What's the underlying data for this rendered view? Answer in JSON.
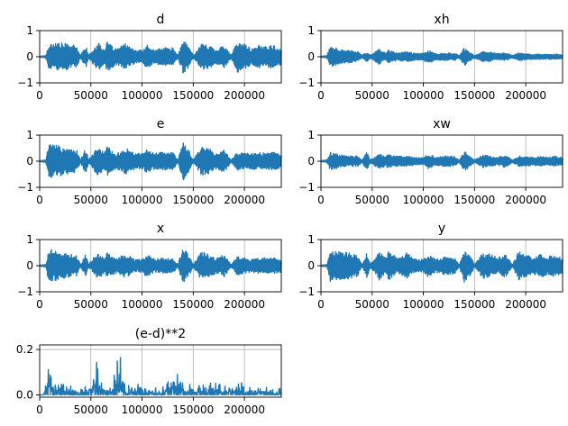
{
  "figure": {
    "background": "#ffffff",
    "line_color": "#1f77b4",
    "grid_color": "#b0b0b0"
  },
  "chart_data": [
    {
      "type": "line",
      "title": "d",
      "x_range": [
        0,
        236000
      ],
      "ylim": [
        -1,
        1
      ],
      "xticks": [
        0,
        50000,
        100000,
        150000,
        200000
      ],
      "xtick_labels": [
        "0",
        "50000",
        "100000",
        "150000",
        "200000"
      ],
      "yticks": [
        -1,
        0,
        1
      ],
      "ytick_labels": [
        "−1",
        "0",
        "1"
      ],
      "grid": "x",
      "signal": {
        "kind": "speech",
        "x": [
          0,
          6000,
          9000,
          18000,
          27000,
          36000,
          40000,
          45000,
          48000,
          57000,
          63000,
          66000,
          75000,
          84000,
          93000,
          100000,
          105000,
          112000,
          120000,
          130000,
          135000,
          140000,
          146000,
          150000,
          158000,
          165000,
          173000,
          180000,
          187000,
          193000,
          200000,
          207000,
          215000,
          222000,
          228000,
          236000
        ],
        "peak": [
          0.02,
          0.05,
          0.5,
          0.55,
          0.5,
          0.4,
          0.05,
          0.45,
          0.05,
          0.55,
          0.3,
          0.55,
          0.3,
          0.5,
          0.25,
          0.25,
          0.45,
          0.25,
          0.35,
          0.35,
          0.05,
          0.65,
          0.4,
          0.05,
          0.5,
          0.45,
          0.3,
          0.45,
          0.05,
          0.6,
          0.5,
          0.3,
          0.45,
          0.4,
          0.45,
          0.3
        ]
      }
    },
    {
      "type": "line",
      "title": "xh",
      "x_range": [
        0,
        236000
      ],
      "ylim": [
        -1,
        1
      ],
      "xticks": [
        0,
        50000,
        100000,
        150000,
        200000
      ],
      "xtick_labels": [
        "0",
        "50000",
        "100000",
        "150000",
        "200000"
      ],
      "yticks": [
        -1,
        0,
        1
      ],
      "ytick_labels": [
        "−1",
        "0",
        "1"
      ],
      "grid": "x",
      "signal": {
        "kind": "speech",
        "x": [
          0,
          6000,
          9000,
          18000,
          27000,
          36000,
          40000,
          45000,
          48000,
          57000,
          63000,
          66000,
          75000,
          84000,
          93000,
          100000,
          105000,
          112000,
          120000,
          130000,
          135000,
          140000,
          146000,
          150000,
          158000,
          165000,
          173000,
          180000,
          187000,
          193000,
          200000,
          207000,
          215000,
          222000,
          228000,
          236000
        ],
        "peak": [
          0.02,
          0.05,
          0.45,
          0.3,
          0.25,
          0.2,
          0.05,
          0.2,
          0.05,
          0.3,
          0.15,
          0.25,
          0.15,
          0.2,
          0.12,
          0.15,
          0.25,
          0.12,
          0.15,
          0.15,
          0.05,
          0.35,
          0.15,
          0.05,
          0.2,
          0.18,
          0.12,
          0.15,
          0.05,
          0.15,
          0.12,
          0.1,
          0.1,
          0.1,
          0.1,
          0.08
        ]
      }
    },
    {
      "type": "line",
      "title": "e",
      "x_range": [
        0,
        236000
      ],
      "ylim": [
        -1,
        1
      ],
      "xticks": [
        0,
        50000,
        100000,
        150000,
        200000
      ],
      "xtick_labels": [
        "0",
        "50000",
        "100000",
        "150000",
        "200000"
      ],
      "yticks": [
        -1,
        0,
        1
      ],
      "ytick_labels": [
        "−1",
        "0",
        "1"
      ],
      "grid": "x",
      "signal": {
        "kind": "speech",
        "x": [
          0,
          6000,
          9000,
          18000,
          27000,
          36000,
          40000,
          45000,
          48000,
          57000,
          63000,
          66000,
          75000,
          84000,
          93000,
          100000,
          105000,
          112000,
          120000,
          130000,
          135000,
          140000,
          146000,
          150000,
          158000,
          165000,
          173000,
          180000,
          187000,
          193000,
          200000,
          207000,
          215000,
          222000,
          228000,
          236000
        ],
        "peak": [
          0.02,
          0.05,
          0.7,
          0.6,
          0.5,
          0.45,
          0.05,
          0.5,
          0.05,
          0.6,
          0.3,
          0.55,
          0.3,
          0.5,
          0.3,
          0.3,
          0.45,
          0.3,
          0.35,
          0.35,
          0.05,
          0.75,
          0.4,
          0.05,
          0.55,
          0.5,
          0.3,
          0.45,
          0.05,
          0.35,
          0.3,
          0.3,
          0.35,
          0.3,
          0.35,
          0.25
        ]
      }
    },
    {
      "type": "line",
      "title": "xw",
      "x_range": [
        0,
        236000
      ],
      "ylim": [
        -1,
        1
      ],
      "xticks": [
        0,
        50000,
        100000,
        150000,
        200000
      ],
      "xtick_labels": [
        "0",
        "50000",
        "100000",
        "150000",
        "200000"
      ],
      "yticks": [
        -1,
        0,
        1
      ],
      "ytick_labels": [
        "−1",
        "0",
        "1"
      ],
      "grid": "x",
      "signal": {
        "kind": "speech",
        "x": [
          0,
          6000,
          9000,
          18000,
          27000,
          36000,
          40000,
          45000,
          48000,
          57000,
          63000,
          66000,
          75000,
          84000,
          93000,
          100000,
          105000,
          112000,
          120000,
          130000,
          135000,
          140000,
          146000,
          150000,
          158000,
          165000,
          173000,
          180000,
          187000,
          193000,
          200000,
          207000,
          215000,
          222000,
          228000,
          236000
        ],
        "peak": [
          0.02,
          0.05,
          0.35,
          0.25,
          0.2,
          0.2,
          0.05,
          0.35,
          0.05,
          0.3,
          0.2,
          0.25,
          0.2,
          0.2,
          0.15,
          0.15,
          0.3,
          0.15,
          0.2,
          0.2,
          0.05,
          0.4,
          0.2,
          0.05,
          0.25,
          0.2,
          0.15,
          0.25,
          0.05,
          0.2,
          0.2,
          0.15,
          0.2,
          0.15,
          0.2,
          0.15
        ]
      }
    },
    {
      "type": "line",
      "title": "x",
      "x_range": [
        0,
        236000
      ],
      "ylim": [
        -1,
        1
      ],
      "xticks": [
        0,
        50000,
        100000,
        150000,
        200000
      ],
      "xtick_labels": [
        "0",
        "50000",
        "100000",
        "150000",
        "200000"
      ],
      "yticks": [
        -1,
        0,
        1
      ],
      "ytick_labels": [
        "−1",
        "0",
        "1"
      ],
      "grid": "x",
      "signal": {
        "kind": "speech",
        "x": [
          0,
          6000,
          9000,
          18000,
          27000,
          36000,
          40000,
          45000,
          48000,
          57000,
          63000,
          66000,
          75000,
          84000,
          93000,
          100000,
          105000,
          112000,
          120000,
          130000,
          135000,
          140000,
          146000,
          150000,
          158000,
          165000,
          173000,
          180000,
          187000,
          193000,
          200000,
          207000,
          215000,
          222000,
          228000,
          236000
        ],
        "peak": [
          0.02,
          0.05,
          0.65,
          0.55,
          0.45,
          0.4,
          0.05,
          0.45,
          0.05,
          0.55,
          0.3,
          0.5,
          0.3,
          0.45,
          0.25,
          0.25,
          0.45,
          0.25,
          0.3,
          0.3,
          0.05,
          0.75,
          0.4,
          0.05,
          0.55,
          0.45,
          0.3,
          0.45,
          0.05,
          0.35,
          0.3,
          0.25,
          0.3,
          0.3,
          0.3,
          0.25
        ]
      }
    },
    {
      "type": "line",
      "title": "y",
      "x_range": [
        0,
        236000
      ],
      "ylim": [
        -1,
        1
      ],
      "xticks": [
        0,
        50000,
        100000,
        150000,
        200000
      ],
      "xtick_labels": [
        "0",
        "50000",
        "100000",
        "150000",
        "200000"
      ],
      "yticks": [
        -1,
        0,
        1
      ],
      "ytick_labels": [
        "−1",
        "0",
        "1"
      ],
      "grid": "x",
      "signal": {
        "kind": "speech",
        "x": [
          0,
          6000,
          9000,
          18000,
          27000,
          36000,
          40000,
          45000,
          48000,
          57000,
          63000,
          66000,
          75000,
          84000,
          93000,
          100000,
          105000,
          112000,
          120000,
          130000,
          135000,
          140000,
          146000,
          150000,
          158000,
          165000,
          173000,
          180000,
          187000,
          193000,
          200000,
          207000,
          215000,
          222000,
          228000,
          236000
        ],
        "peak": [
          0.02,
          0.05,
          0.6,
          0.55,
          0.5,
          0.4,
          0.05,
          0.5,
          0.05,
          0.55,
          0.3,
          0.55,
          0.3,
          0.5,
          0.25,
          0.25,
          0.45,
          0.25,
          0.35,
          0.35,
          0.05,
          0.65,
          0.4,
          0.05,
          0.5,
          0.45,
          0.3,
          0.45,
          0.05,
          0.55,
          0.45,
          0.3,
          0.45,
          0.35,
          0.45,
          0.3
        ]
      }
    },
    {
      "type": "line",
      "title": "(e-d)**2",
      "x_range": [
        0,
        236000
      ],
      "ylim": [
        -0.01,
        0.22
      ],
      "xticks": [
        0,
        50000,
        100000,
        150000,
        200000
      ],
      "xtick_labels": [
        "0",
        "50000",
        "100000",
        "150000",
        "200000"
      ],
      "yticks": [
        0.0,
        0.2
      ],
      "ytick_labels": [
        "0.0",
        "0.2"
      ],
      "grid": "both",
      "signal": {
        "kind": "squared",
        "x": [
          0,
          4000,
          7000,
          9000,
          12000,
          20000,
          30000,
          40000,
          50000,
          56000,
          58000,
          62000,
          70000,
          76000,
          79000,
          83000,
          90000,
          100000,
          110000,
          120000,
          128000,
          132000,
          138000,
          145000,
          155000,
          165000,
          175000,
          185000,
          195000,
          205000,
          215000,
          225000,
          236000
        ],
        "peak": [
          0.0,
          0.0,
          0.2,
          0.21,
          0.08,
          0.05,
          0.04,
          0.03,
          0.05,
          0.18,
          0.17,
          0.05,
          0.04,
          0.16,
          0.21,
          0.05,
          0.04,
          0.06,
          0.03,
          0.04,
          0.07,
          0.1,
          0.09,
          0.05,
          0.05,
          0.06,
          0.05,
          0.04,
          0.06,
          0.04,
          0.04,
          0.03,
          0.03
        ]
      }
    }
  ]
}
